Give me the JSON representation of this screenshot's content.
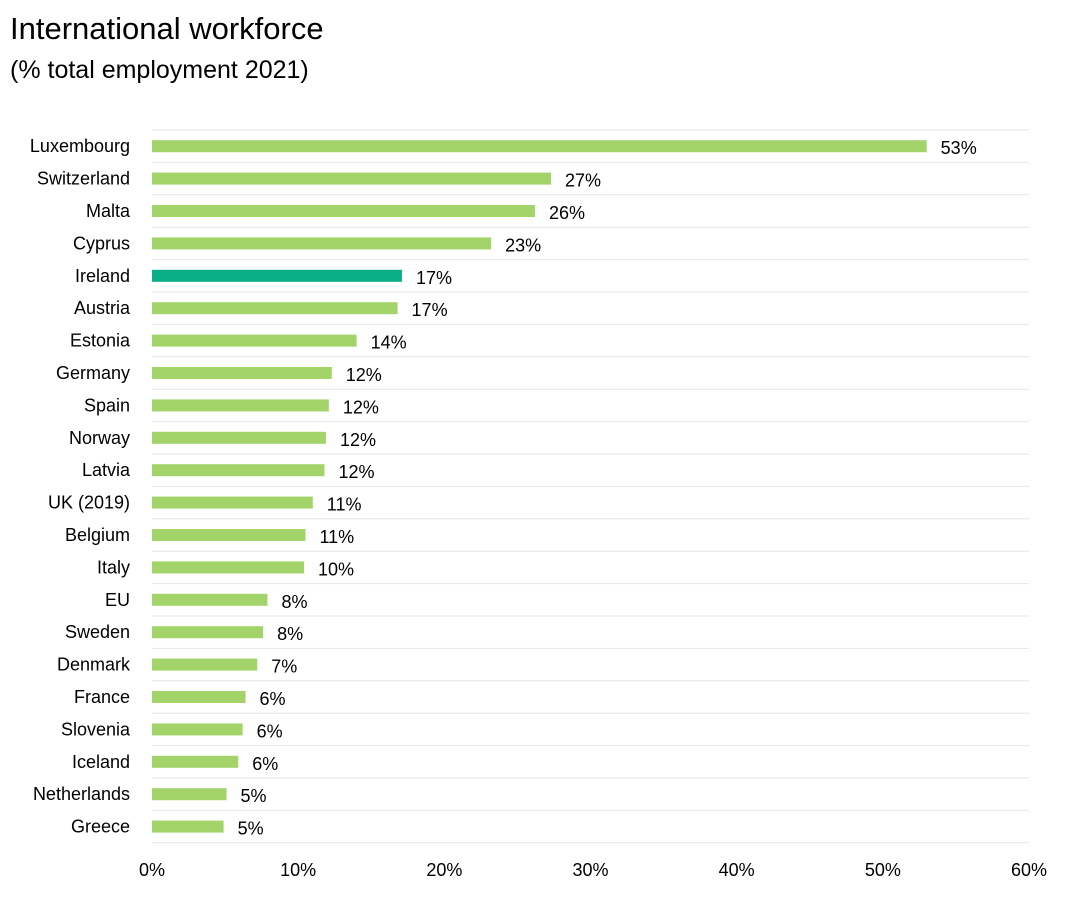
{
  "chart_data": {
    "type": "bar",
    "orientation": "horizontal",
    "title": "International workforce",
    "subtitle": "(% total employment 2021)",
    "categories": [
      "Luxembourg",
      "Switzerland",
      "Malta",
      "Cyprus",
      "Ireland",
      "Austria",
      "Estonia",
      "Germany",
      "Spain",
      "Norway",
      "Latvia",
      "UK (2019)",
      "Belgium",
      "Italy",
      "EU",
      "Sweden",
      "Denmark",
      "France",
      "Slovenia",
      "Iceland",
      "Netherlands",
      "Greece"
    ],
    "values": [
      53,
      27.3,
      26.2,
      23.2,
      17.1,
      16.8,
      14.0,
      12.3,
      12.1,
      11.9,
      11.8,
      11.0,
      10.5,
      10.4,
      7.9,
      7.6,
      7.2,
      6.4,
      6.2,
      5.9,
      5.1,
      4.9
    ],
    "value_labels": [
      "53%",
      "27%",
      "26%",
      "23%",
      "17%",
      "17%",
      "14%",
      "12%",
      "12%",
      "12%",
      "12%",
      "11%",
      "11%",
      "10%",
      "8%",
      "8%",
      "7%",
      "6%",
      "6%",
      "6%",
      "5%",
      "5%"
    ],
    "highlight": "Ireland",
    "colors": {
      "bar": "#a3d46a",
      "highlight": "#0aae86",
      "grid": "#e6e6e6"
    },
    "xlim": [
      0,
      60
    ],
    "xticks": [
      "0%",
      "10%",
      "20%",
      "30%",
      "40%",
      "50%",
      "60%"
    ],
    "xlabel": "",
    "ylabel": "",
    "grid": true,
    "legend": "none"
  }
}
